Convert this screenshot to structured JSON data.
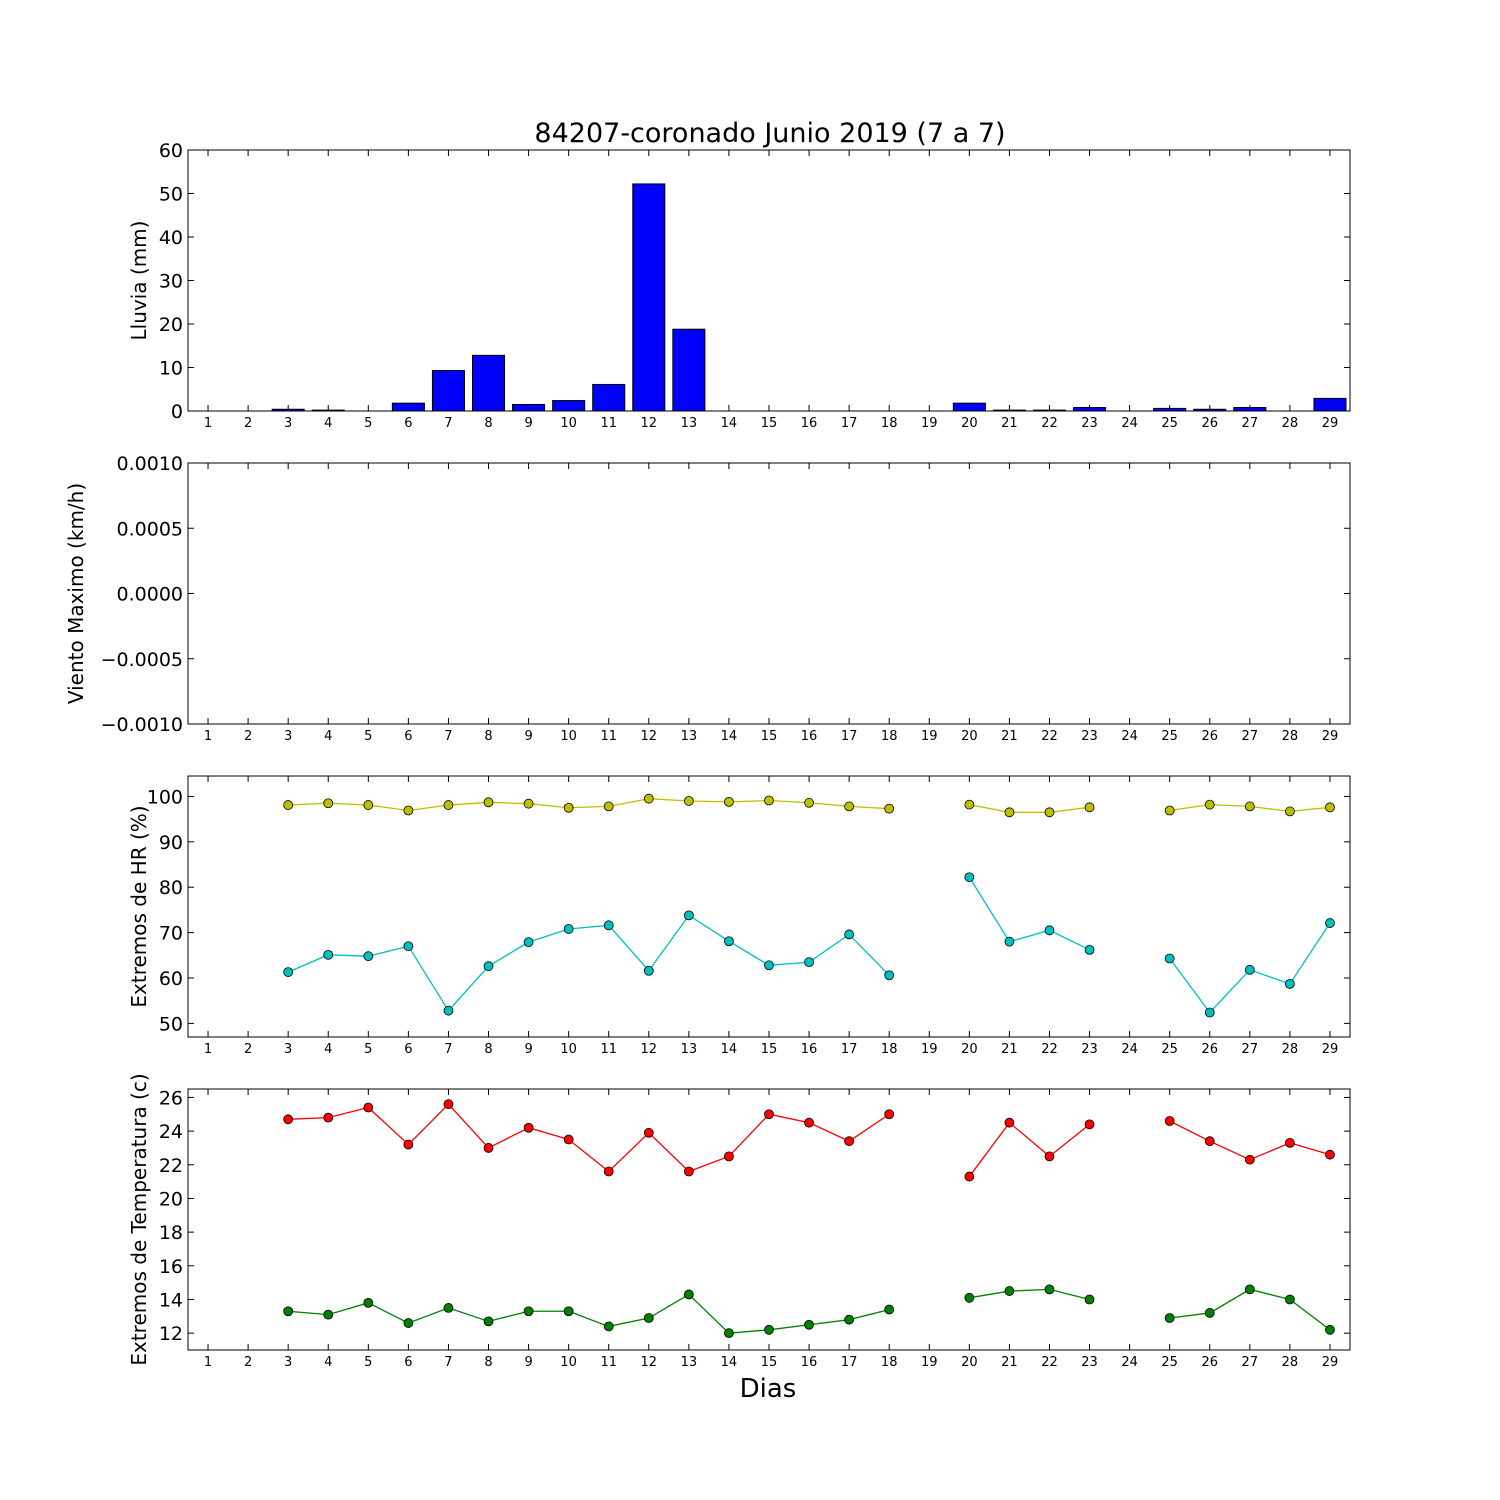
{
  "chart_data": {
    "title": "84207-coronado Junio 2019  (7 a 7)",
    "xlabel": "Dias",
    "days": [
      1,
      2,
      3,
      4,
      5,
      6,
      7,
      8,
      9,
      10,
      11,
      12,
      13,
      14,
      15,
      16,
      17,
      18,
      19,
      20,
      21,
      22,
      23,
      24,
      25,
      26,
      27,
      28,
      29
    ],
    "panels": [
      {
        "id": "rain",
        "type": "bar",
        "ylabel": "Lluvia (mm)",
        "ylim": [
          0,
          60
        ],
        "yticks": [
          0,
          10,
          20,
          30,
          40,
          50,
          60
        ],
        "ytick_labels": [
          "0",
          "10",
          "20",
          "30",
          "40",
          "50",
          "60"
        ],
        "series": [
          {
            "color": "#0000ff",
            "values": [
              0,
              0,
              0.4,
              0.2,
              0,
              1.8,
              9.3,
              12.8,
              1.5,
              2.4,
              6.1,
              52.2,
              18.8,
              0,
              0,
              0,
              0,
              0,
              0,
              1.8,
              0.2,
              0.2,
              0.8,
              0,
              0.6,
              0.4,
              0.8,
              0,
              2.9
            ]
          }
        ]
      },
      {
        "id": "wind",
        "type": "line",
        "ylabel": "Viento Maximo (km/h)",
        "ylim": [
          -0.001,
          0.001
        ],
        "yticks": [
          -0.001,
          -0.0005,
          0,
          0.0005,
          0.001
        ],
        "ytick_labels": [
          "−0.0010",
          "−0.0005",
          "0.0000",
          "0.0005",
          "0.0010"
        ],
        "series": []
      },
      {
        "id": "humidity",
        "type": "line",
        "ylabel": "Extremos de HR (%)",
        "ylim": [
          47,
          104.5
        ],
        "yticks": [
          50,
          60,
          70,
          80,
          90,
          100
        ],
        "ytick_labels": [
          "50",
          "60",
          "70",
          "80",
          "90",
          "100"
        ],
        "series": [
          {
            "color": "#bfbf00",
            "values": [
              null,
              null,
              98.1,
              98.5,
              98.1,
              96.9,
              98.1,
              98.7,
              98.4,
              97.5,
              97.8,
              99.5,
              99.0,
              98.8,
              99.1,
              98.6,
              97.8,
              97.3,
              null,
              98.2,
              96.5,
              96.5,
              97.6,
              null,
              96.9,
              98.2,
              97.8,
              96.7,
              97.6
            ]
          },
          {
            "color": "#00bfbf",
            "values": [
              null,
              null,
              61.3,
              65.1,
              64.8,
              67.0,
              52.8,
              62.6,
              67.9,
              70.8,
              71.6,
              61.6,
              73.8,
              68.1,
              62.8,
              63.5,
              69.6,
              60.6,
              null,
              82.2,
              68.0,
              70.5,
              66.2,
              null,
              64.3,
              52.4,
              61.8,
              58.7,
              72.1
            ]
          }
        ]
      },
      {
        "id": "temperature",
        "type": "line",
        "ylabel": "Extremos de Temperatura (c)",
        "ylim": [
          11,
          26.5
        ],
        "yticks": [
          12,
          14,
          16,
          18,
          20,
          22,
          24,
          26
        ],
        "ytick_labels": [
          "12",
          "14",
          "16",
          "18",
          "20",
          "22",
          "24",
          "26"
        ],
        "series": [
          {
            "color": "#ff0000",
            "values": [
              null,
              null,
              24.7,
              24.8,
              25.4,
              23.2,
              25.6,
              23.0,
              24.2,
              23.5,
              21.6,
              23.9,
              21.6,
              22.5,
              25.0,
              24.5,
              23.4,
              25.0,
              null,
              21.3,
              24.5,
              22.5,
              24.4,
              null,
              24.6,
              23.4,
              22.3,
              23.3,
              22.6
            ]
          },
          {
            "color": "#008000",
            "values": [
              null,
              null,
              13.3,
              13.1,
              13.8,
              12.6,
              13.5,
              12.7,
              13.3,
              13.3,
              12.4,
              12.9,
              14.3,
              12.0,
              12.2,
              12.5,
              12.8,
              13.4,
              null,
              14.1,
              14.5,
              14.6,
              14.0,
              null,
              12.9,
              13.2,
              14.6,
              14.0,
              12.2
            ]
          }
        ]
      }
    ]
  }
}
